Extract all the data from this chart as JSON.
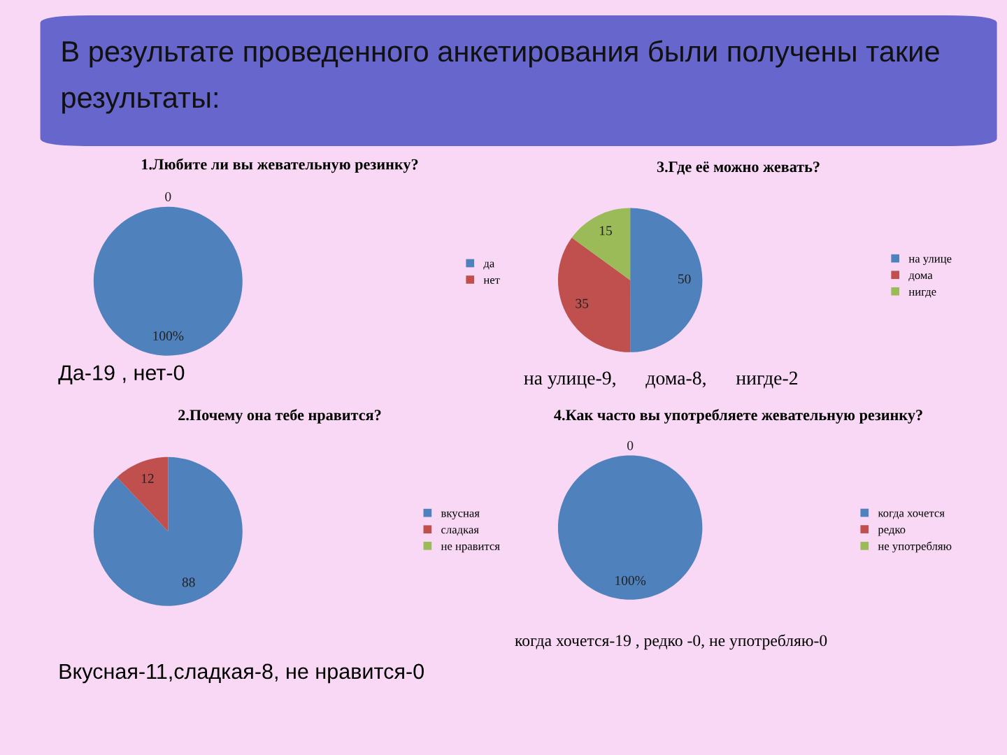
{
  "chart_data": [
    {
      "type": "other",
      "title": "В результате проведенного анкетирования были получены такие результаты:"
    },
    {
      "type": "pie",
      "title": "1.Любите ли вы жевательную резинку?",
      "categories": [
        "да",
        "нет"
      ],
      "values": [
        100,
        0
      ],
      "value_labels": [
        "100%",
        "0"
      ],
      "colors": [
        "#4f81bd",
        "#c0504d"
      ],
      "legend": "right",
      "annotations": [
        "Да-19 , нет-0"
      ]
    },
    {
      "type": "pie",
      "title": "2.Почему она тебе нравится?",
      "categories": [
        "вкусная",
        "сладкая",
        "не нравится"
      ],
      "values": [
        88,
        12,
        0
      ],
      "value_labels": [
        "88",
        "12",
        null
      ],
      "colors": [
        "#4f81bd",
        "#c0504d",
        "#9bbb59"
      ],
      "legend": "right",
      "annotations": [
        "Вкусная-11,сладкая-8, не нравится-0"
      ]
    },
    {
      "type": "pie",
      "title": "3.Где её можно жевать?",
      "categories": [
        "на улице",
        "дома",
        "нигде"
      ],
      "values": [
        50,
        35,
        15
      ],
      "data_labels": true,
      "colors": [
        "#4f81bd",
        "#c0504d",
        "#9bbb59"
      ],
      "legend": "right",
      "annotations": [
        "на улице-9,      дома-8,      нигде-2"
      ]
    },
    {
      "type": "pie",
      "title": "4.Как часто вы употребляете жевательную резинку?",
      "categories": [
        "когда хочется",
        "редко",
        "не употребляю"
      ],
      "values": [
        100,
        0,
        0
      ],
      "value_labels": [
        "100%",
        "0",
        null
      ],
      "colors": [
        "#4f81bd",
        "#c0504d",
        "#9bbb59"
      ],
      "legend": "right",
      "annotations": [
        "когда хочется-19 , редко -0, не употребляю-0"
      ]
    }
  ]
}
